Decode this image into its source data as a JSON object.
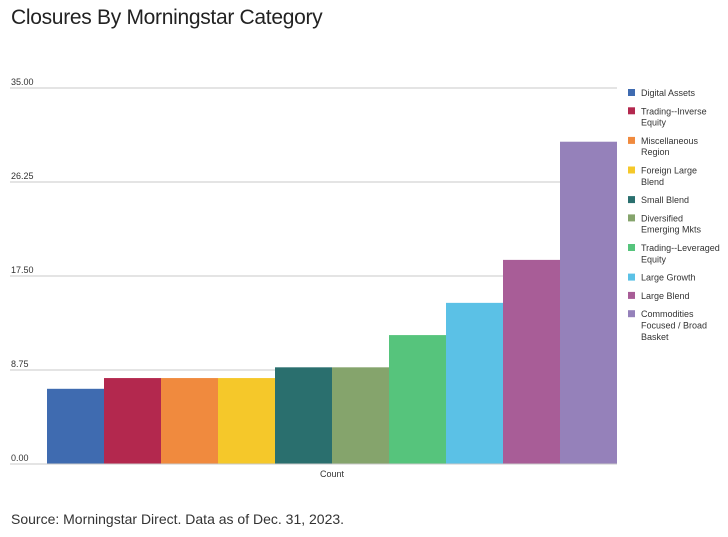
{
  "title": "Closures By Morningstar Category",
  "footer": "Source: Morningstar Direct. Data as of Dec. 31, 2023.",
  "chart_data": {
    "type": "bar",
    "title": "Closures By Morningstar Category",
    "xlabel": "Count",
    "ylabel": "",
    "ylim": [
      0,
      35
    ],
    "yticks": [
      "0.00",
      "8.75",
      "17.50",
      "26.25",
      "35.00"
    ],
    "grid": true,
    "legend_position": "right",
    "categories": [
      "Count"
    ],
    "series": [
      {
        "name": "Digital Assets",
        "legend_lines": [
          "Digital Assets"
        ],
        "values": [
          7
        ],
        "color": "#3f6bb0"
      },
      {
        "name": "Trading--Inverse Equity",
        "legend_lines": [
          "Trading--Inverse",
          "Equity"
        ],
        "values": [
          8
        ],
        "color": "#b3284e"
      },
      {
        "name": "Miscellaneous Region",
        "legend_lines": [
          "Miscellaneous",
          "Region"
        ],
        "values": [
          8
        ],
        "color": "#f08a3e"
      },
      {
        "name": "Foreign Large Blend",
        "legend_lines": [
          "Foreign Large",
          "Blend"
        ],
        "values": [
          8
        ],
        "color": "#f5c82a"
      },
      {
        "name": "Small Blend",
        "legend_lines": [
          "Small Blend"
        ],
        "values": [
          9
        ],
        "color": "#2a6f6e"
      },
      {
        "name": "Diversified Emerging Mkts",
        "legend_lines": [
          "Diversified",
          "Emerging Mkts"
        ],
        "values": [
          9
        ],
        "color": "#85a46c"
      },
      {
        "name": "Trading--Leveraged Equity",
        "legend_lines": [
          "Trading--Leveraged",
          "Equity"
        ],
        "values": [
          12
        ],
        "color": "#56c47c"
      },
      {
        "name": "Large Growth",
        "legend_lines": [
          "Large Growth"
        ],
        "values": [
          15
        ],
        "color": "#5bc1e6"
      },
      {
        "name": "Large Blend",
        "legend_lines": [
          "Large Blend"
        ],
        "values": [
          19
        ],
        "color": "#a85d97"
      },
      {
        "name": "Commodities Focused / Broad Basket",
        "legend_lines": [
          "Commodities",
          "Focused / Broad",
          "Basket"
        ],
        "values": [
          30
        ],
        "color": "#9581ba"
      }
    ]
  }
}
